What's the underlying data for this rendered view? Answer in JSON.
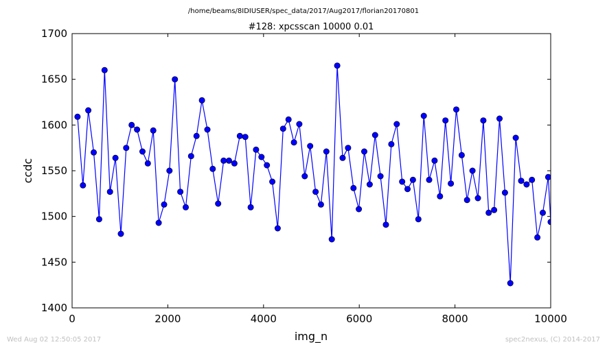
{
  "chart_data": {
    "type": "line",
    "suptitle": "/home/beams/8IDIUSER/spec_data/2017/Aug2017/florian20170801",
    "title": "#128: xpcsscan 10000 0.01",
    "xlabel": "img_n",
    "ylabel": "ccdc",
    "xlim": [
      0,
      10000
    ],
    "ylim": [
      1400,
      1700
    ],
    "xticks": [
      0,
      2000,
      4000,
      6000,
      8000,
      10000
    ],
    "yticks": [
      1400,
      1450,
      1500,
      1550,
      1600,
      1650,
      1700
    ],
    "grid": false,
    "series_color": "#0000ff",
    "marker": "circle",
    "x": [
      113,
      226,
      339,
      452,
      565,
      678,
      792,
      905,
      1018,
      1131,
      1244,
      1357,
      1470,
      1583,
      1696,
      1809,
      1922,
      2035,
      2148,
      2261,
      2374,
      2487,
      2600,
      2713,
      2826,
      2939,
      3052,
      3166,
      3279,
      3392,
      3505,
      3618,
      3731,
      3844,
      3957,
      4070,
      4183,
      4296,
      4409,
      4522,
      4635,
      4748,
      4861,
      4974,
      5087,
      5200,
      5313,
      5426,
      5540,
      5653,
      5766,
      5879,
      5992,
      6105,
      6218,
      6331,
      6444,
      6557,
      6670,
      6783,
      6896,
      7009,
      7122,
      7235,
      7348,
      7461,
      7574,
      7687,
      7800,
      7914,
      8027,
      8140,
      8253,
      8366,
      8479,
      8592,
      8705,
      8818,
      8931,
      9044,
      9157,
      9270,
      9383,
      9496,
      9609,
      9722,
      9835,
      9948,
      10000
    ],
    "y": [
      1609,
      1534,
      1616,
      1570,
      1497,
      1660,
      1527,
      1564,
      1481,
      1575,
      1600,
      1595,
      1571,
      1558,
      1594,
      1493,
      1513,
      1550,
      1650,
      1527,
      1510,
      1566,
      1588,
      1627,
      1595,
      1552,
      1514,
      1561,
      1561,
      1558,
      1588,
      1587,
      1510,
      1573,
      1565,
      1556,
      1538,
      1487,
      1596,
      1606,
      1581,
      1601,
      1544,
      1577,
      1527,
      1513,
      1571,
      1475,
      1665,
      1564,
      1575,
      1531,
      1508,
      1571,
      1535,
      1589,
      1544,
      1491,
      1579,
      1601,
      1538,
      1530,
      1540,
      1497,
      1610,
      1540,
      1561,
      1522,
      1605,
      1536,
      1617,
      1567,
      1518,
      1550,
      1520,
      1605,
      1504,
      1507,
      1607,
      1526,
      1427,
      1586,
      1539,
      1535,
      1540,
      1477,
      1504,
      1543,
      1494
    ]
  },
  "footer": {
    "left": "Wed Aug 02 12:50:05 2017",
    "right": "spec2nexus, (C) 2014-2017"
  }
}
